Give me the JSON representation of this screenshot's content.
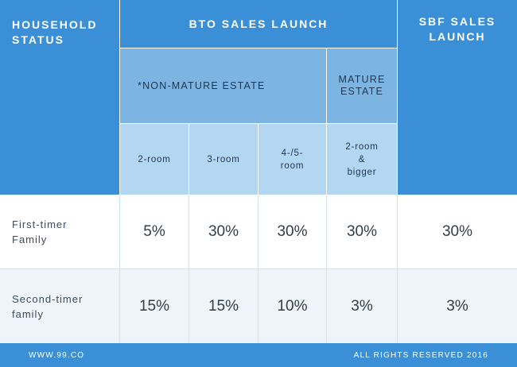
{
  "header": {
    "household_status": "HOUSEHOLD\nSTATUS",
    "bto_launch": "BTO SALES LAUNCH",
    "sbf_launch": "SBF SALES\nLAUNCH",
    "non_mature": "*NON-MATURE ESTATE",
    "mature": "MATURE\nESTATE",
    "room_types": [
      "2-room",
      "3-room",
      "4-/5-\nroom",
      "2-room\n&\nbigger"
    ]
  },
  "rows": [
    {
      "label": "First-timer\nFamily",
      "values": [
        "5%",
        "30%",
        "30%",
        "30%",
        "30%"
      ]
    },
    {
      "label": "Second-timer\nfamily",
      "values": [
        "15%",
        "15%",
        "10%",
        "3%",
        "3%"
      ]
    }
  ],
  "footer": {
    "left": "WWW.99.CO",
    "right": "ALL RIGHTS RESERVED 2016"
  },
  "colors": {
    "header_blue": "#3a8fd6",
    "mid_blue": "#7db5e2",
    "light_blue": "#b3d6f1"
  }
}
